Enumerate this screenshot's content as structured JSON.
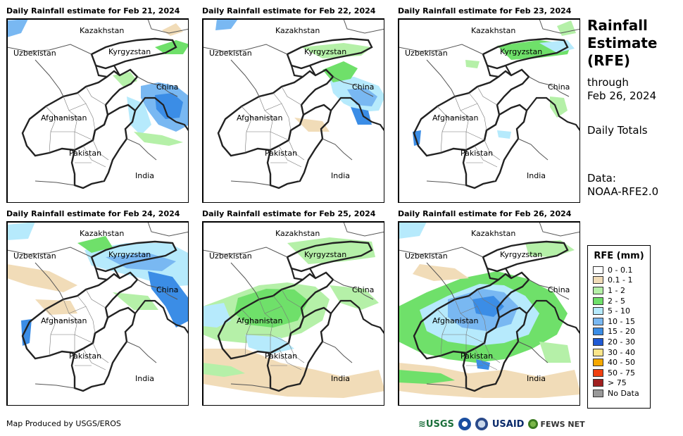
{
  "panels": [
    {
      "title": "Daily Rainfall estimate for Feb 21, 2024"
    },
    {
      "title": "Daily Rainfall estimate for Feb 22, 2024"
    },
    {
      "title": "Daily Rainfall estimate for Feb 23, 2024"
    },
    {
      "title": "Daily Rainfall estimate for Feb 24, 2024"
    },
    {
      "title": "Daily Rainfall estimate for Feb 25, 2024"
    },
    {
      "title": "Daily Rainfall estimate for Feb 26, 2024"
    }
  ],
  "places": {
    "kazakhstan": "Kazakhstan",
    "uzbekistan": "Uzbekistan",
    "kyrgyzstan": "Kyrgyzstan",
    "china": "China",
    "afghanistan": "Afghanistan",
    "pakistan": "Pakistan",
    "india": "India"
  },
  "side": {
    "title_line1": "Rainfall",
    "title_line2": "Estimate",
    "title_line3": "(RFE)",
    "through_label": "through",
    "through_date": "Feb 26, 2024",
    "daily_totals": "Daily Totals",
    "data_label": "Data:",
    "data_source": "NOAA-RFE2.0"
  },
  "legend": {
    "title": "RFE (mm)",
    "items": [
      {
        "label": "0 - 0.1",
        "color": "#ffffff"
      },
      {
        "label": "0.1 - 1",
        "color": "#f1dcb8"
      },
      {
        "label": "1 - 2",
        "color": "#b5f0a8"
      },
      {
        "label": "2 - 5",
        "color": "#6fe06a"
      },
      {
        "label": "5 - 10",
        "color": "#b6eafc"
      },
      {
        "label": "10 - 15",
        "color": "#79b8f2"
      },
      {
        "label": "15 - 20",
        "color": "#3b8de6"
      },
      {
        "label": "20 - 30",
        "color": "#1f5ad4"
      },
      {
        "label": "30 - 40",
        "color": "#fbe58a"
      },
      {
        "label": "40 - 50",
        "color": "#f6a800"
      },
      {
        "label": "50 - 75",
        "color": "#f04010"
      },
      {
        "label": "> 75",
        "color": "#a02020"
      },
      {
        "label": "No Data",
        "color": "#999999"
      }
    ]
  },
  "footer": {
    "credit": "Map Produced by USGS/EROS",
    "usgs": "USGS",
    "usaid": "USAID",
    "fewsnet": "FEWS NET"
  }
}
